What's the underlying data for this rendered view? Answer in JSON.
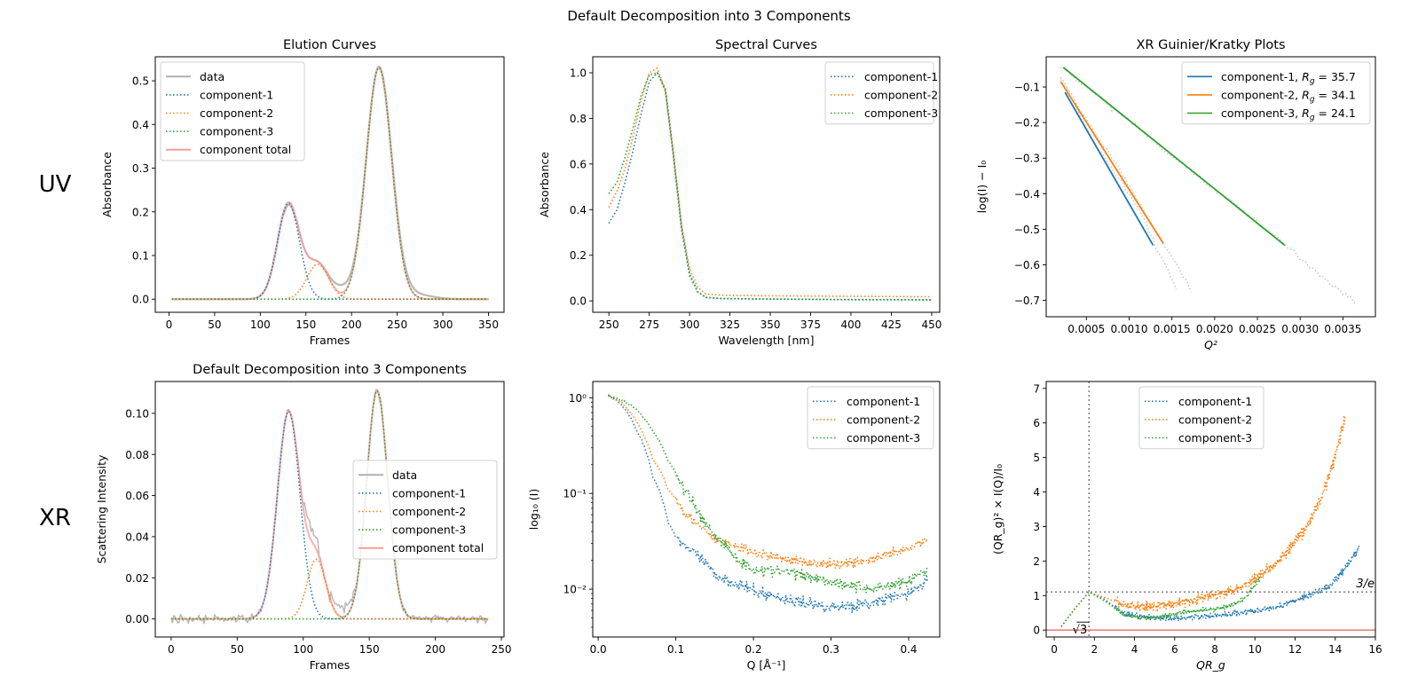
{
  "figure": {
    "suptitle": "Default Decomposition into 3 Components",
    "row_labels": [
      "UV",
      "XR"
    ],
    "colors": {
      "data": "#b0b0b0",
      "c1": "#1f77b4",
      "c2": "#ff7f0e",
      "c3": "#2ca02c",
      "total": "#ff9a9a",
      "ref": "#808080",
      "zero": "#f08080"
    }
  },
  "chart_data": [
    {
      "id": "uv-elution",
      "type": "line",
      "title": "Elution Curves",
      "xlabel": "Frames",
      "ylabel": "Absorbance",
      "xlim": [
        -15,
        367
      ],
      "ylim": [
        -0.03,
        0.555
      ],
      "xticks": [
        0,
        50,
        100,
        150,
        200,
        250,
        300,
        350
      ],
      "yticks": [
        0.0,
        0.1,
        0.2,
        0.3,
        0.4,
        0.5
      ],
      "ytick_labels": [
        "0.0",
        "0.1",
        "0.2",
        "0.3",
        "0.4",
        "0.5"
      ],
      "legend": {
        "position": "upper-left",
        "entries": [
          {
            "label": "data",
            "style": "solid",
            "color": "data"
          },
          {
            "label": "component-1",
            "style": "dotted",
            "color": "c1"
          },
          {
            "label": "component-2",
            "style": "dotted",
            "color": "c2"
          },
          {
            "label": "component-3",
            "style": "dotted",
            "color": "c3"
          },
          {
            "label": "component total",
            "style": "solid",
            "color": "total"
          }
        ]
      },
      "x_range": [
        3,
        350
      ],
      "components": [
        {
          "name": "component-1",
          "peaks": [
            {
              "center": 131,
              "height": 0.22,
              "sigma": 12
            }
          ]
        },
        {
          "name": "component-2",
          "peaks": [
            {
              "center": 163,
              "height": 0.08,
              "sigma": 12
            }
          ]
        },
        {
          "name": "component-3",
          "peaks": [
            {
              "center": 230,
              "height": 0.53,
              "sigma": 14
            }
          ]
        }
      ],
      "data_extra": [
        {
          "center": 190,
          "height": 0.018,
          "sigma": 10
        },
        {
          "center": 265,
          "height": 0.012,
          "sigma": 20
        }
      ]
    },
    {
      "id": "uv-spectral",
      "type": "line",
      "title": "Spectral Curves",
      "xlabel": "Wavelength [nm]",
      "ylabel": "Absorbance",
      "xlim": [
        240,
        455
      ],
      "ylim": [
        -0.05,
        1.07
      ],
      "xticks": [
        250,
        275,
        300,
        325,
        350,
        375,
        400,
        425,
        450
      ],
      "yticks": [
        0.0,
        0.2,
        0.4,
        0.6,
        0.8,
        1.0
      ],
      "ytick_labels": [
        "0.0",
        "0.2",
        "0.4",
        "0.6",
        "0.8",
        "1.0"
      ],
      "legend": {
        "position": "upper-right",
        "entries": [
          {
            "label": "component-1",
            "style": "dotted",
            "color": "c1"
          },
          {
            "label": "component-2",
            "style": "dotted",
            "color": "c2"
          },
          {
            "label": "component-3",
            "style": "dotted",
            "color": "c3"
          }
        ]
      },
      "series": [
        {
          "name": "component-1",
          "x": [
            250,
            255,
            260,
            265,
            270,
            275,
            280,
            285,
            290,
            295,
            300,
            305,
            310,
            320,
            350,
            400,
            450
          ],
          "y": [
            0.34,
            0.4,
            0.52,
            0.66,
            0.82,
            0.96,
            1.0,
            0.93,
            0.65,
            0.33,
            0.12,
            0.04,
            0.015,
            0.01,
            0.008,
            0.006,
            0.005
          ]
        },
        {
          "name": "component-2",
          "x": [
            250,
            255,
            260,
            265,
            270,
            275,
            280,
            285,
            290,
            295,
            300,
            305,
            310,
            320,
            350,
            400,
            450
          ],
          "y": [
            0.41,
            0.48,
            0.58,
            0.72,
            0.88,
            1.0,
            1.02,
            0.92,
            0.64,
            0.33,
            0.14,
            0.06,
            0.03,
            0.025,
            0.022,
            0.02,
            0.018
          ]
        },
        {
          "name": "component-3",
          "x": [
            250,
            255,
            260,
            265,
            270,
            275,
            280,
            285,
            290,
            295,
            300,
            305,
            310,
            320,
            350,
            400,
            450
          ],
          "y": [
            0.47,
            0.52,
            0.63,
            0.76,
            0.9,
            0.99,
            1.0,
            0.92,
            0.63,
            0.31,
            0.11,
            0.04,
            0.015,
            0.01,
            0.008,
            0.005,
            0.004
          ]
        }
      ]
    },
    {
      "id": "xr-guinier",
      "type": "line",
      "title": "XR Guinier/Kratky Plots",
      "xlabel": "Q²",
      "ylabel": "log(I) − I₀",
      "xlim": [
        3e-05,
        0.00388
      ],
      "ylim": [
        -0.746,
        -0.015
      ],
      "xticks": [
        0.0005,
        0.001,
        0.0015,
        0.002,
        0.0025,
        0.003,
        0.0035
      ],
      "xtick_labels": [
        "0.0005",
        "0.0010",
        "0.0015",
        "0.0020",
        "0.0025",
        "0.0030",
        "0.0035"
      ],
      "yticks": [
        -0.1,
        -0.2,
        -0.3,
        -0.4,
        -0.5,
        -0.6,
        -0.7
      ],
      "ytick_labels": [
        "−0.1",
        "−0.2",
        "−0.3",
        "−0.4",
        "−0.5",
        "−0.6",
        "−0.7"
      ],
      "legend": {
        "position": "upper-right",
        "entries": [
          {
            "label": "component-1, R_g = 35.7",
            "style": "solid",
            "color": "c1"
          },
          {
            "label": "component-2, R_g = 34.1",
            "style": "solid",
            "color": "c2"
          },
          {
            "label": "component-3, R_g = 24.1",
            "style": "solid",
            "color": "c3"
          }
        ]
      },
      "fits": [
        {
          "name": "component-1",
          "rg": 35.7,
          "x": [
            0.00025,
            0.00128
          ],
          "y": [
            -0.115,
            -0.545
          ]
        },
        {
          "name": "component-2",
          "rg": 34.1,
          "x": [
            0.0002,
            0.0014
          ],
          "y": [
            -0.085,
            -0.54
          ]
        },
        {
          "name": "component-3",
          "rg": 24.1,
          "x": [
            0.00023,
            0.00282
          ],
          "y": [
            -0.045,
            -0.545
          ]
        }
      ],
      "data_points": [
        {
          "x": [
            0.0002,
            0.0004,
            0.0006,
            0.0008,
            0.001,
            0.0012,
            0.0013,
            0.0014,
            0.0015,
            0.00157
          ],
          "y": [
            -0.07,
            -0.17,
            -0.26,
            -0.33,
            -0.4,
            -0.48,
            -0.55,
            -0.59,
            -0.64,
            -0.68
          ]
        },
        {
          "x": [
            0.0002,
            0.0004,
            0.0006,
            0.0008,
            0.001,
            0.0012,
            0.0014,
            0.0015,
            0.0016,
            0.00175
          ],
          "y": [
            -0.08,
            -0.15,
            -0.23,
            -0.3,
            -0.38,
            -0.46,
            -0.54,
            -0.58,
            -0.62,
            -0.68
          ]
        },
        {
          "x": [
            0.0002,
            0.0005,
            0.0008,
            0.0011,
            0.0014,
            0.0017,
            0.002,
            0.0023,
            0.0026,
            0.0029,
            0.0032,
            0.0034,
            0.00366
          ],
          "y": [
            -0.04,
            -0.1,
            -0.16,
            -0.21,
            -0.28,
            -0.33,
            -0.39,
            -0.44,
            -0.5,
            -0.56,
            -0.62,
            -0.66,
            -0.71
          ]
        }
      ]
    },
    {
      "id": "xr-elution",
      "type": "line",
      "title": "Default Decomposition into 3 Components",
      "xlabel": "Frames",
      "ylabel": "Scattering Intensity",
      "xlim": [
        -12,
        252
      ],
      "ylim": [
        -0.0088,
        0.1155
      ],
      "xticks": [
        0,
        50,
        100,
        150,
        200,
        250
      ],
      "yticks": [
        0.0,
        0.02,
        0.04,
        0.06,
        0.08,
        0.1
      ],
      "ytick_labels": [
        "0.00",
        "0.02",
        "0.04",
        "0.06",
        "0.08",
        "0.10"
      ],
      "legend": {
        "position": "center-right",
        "entries": [
          {
            "label": "data",
            "style": "solid",
            "color": "data"
          },
          {
            "label": "component-1",
            "style": "dotted",
            "color": "c1"
          },
          {
            "label": "component-2",
            "style": "dotted",
            "color": "c2"
          },
          {
            "label": "component-3",
            "style": "dotted",
            "color": "c3"
          },
          {
            "label": "component total",
            "style": "solid",
            "color": "total"
          }
        ]
      },
      "x_range": [
        0,
        240
      ],
      "components": [
        {
          "name": "component-1",
          "peaks": [
            {
              "center": 89,
              "height": 0.101,
              "sigma": 8.5
            }
          ]
        },
        {
          "name": "component-2",
          "peaks": [
            {
              "center": 110,
              "height": 0.029,
              "sigma": 7
            }
          ]
        },
        {
          "name": "component-3",
          "peaks": [
            {
              "center": 156,
              "height": 0.111,
              "sigma": 8
            }
          ]
        }
      ],
      "noise": 0.0018
    },
    {
      "id": "xr-scattering",
      "type": "scatter",
      "title": "",
      "xlabel": "Q [Å⁻¹]",
      "ylabel": "log₁₀ (I)",
      "xscale": "linear",
      "yscale": "log",
      "xlim": [
        -0.007,
        0.44
      ],
      "ylim_log10": [
        -2.5,
        0.17
      ],
      "xticks": [
        0.0,
        0.1,
        0.2,
        0.3,
        0.4
      ],
      "xtick_labels": [
        "0.0",
        "0.1",
        "0.2",
        "0.3",
        "0.4"
      ],
      "yticks_log10": [
        0,
        -1,
        -2
      ],
      "ytick_labels": [
        "10⁰",
        "10⁻¹",
        "10⁻²"
      ],
      "legend": {
        "position": "upper-right",
        "entries": [
          {
            "label": "component-1",
            "style": "dotted",
            "color": "c1"
          },
          {
            "label": "component-2",
            "style": "dotted",
            "color": "c2"
          },
          {
            "label": "component-3",
            "style": "dotted",
            "color": "c3"
          }
        ]
      },
      "series": [
        {
          "name": "component-1",
          "x": [
            0.013,
            0.03,
            0.05,
            0.07,
            0.09,
            0.1,
            0.12,
            0.15,
            0.2,
            0.25,
            0.3,
            0.35,
            0.4,
            0.425
          ],
          "y": [
            1.05,
            0.85,
            0.45,
            0.15,
            0.05,
            0.035,
            0.025,
            0.014,
            0.0095,
            0.0075,
            0.0065,
            0.007,
            0.009,
            0.012
          ]
        },
        {
          "name": "component-2",
          "x": [
            0.013,
            0.03,
            0.05,
            0.07,
            0.09,
            0.11,
            0.13,
            0.15,
            0.2,
            0.25,
            0.3,
            0.35,
            0.4,
            0.425
          ],
          "y": [
            1.08,
            0.9,
            0.55,
            0.23,
            0.11,
            0.065,
            0.045,
            0.033,
            0.024,
            0.02,
            0.018,
            0.02,
            0.026,
            0.034
          ]
        },
        {
          "name": "component-3",
          "x": [
            0.013,
            0.03,
            0.05,
            0.07,
            0.09,
            0.11,
            0.13,
            0.15,
            0.18,
            0.2,
            0.25,
            0.3,
            0.35,
            0.4,
            0.425
          ],
          "y": [
            1.05,
            0.95,
            0.75,
            0.45,
            0.22,
            0.11,
            0.06,
            0.036,
            0.02,
            0.016,
            0.015,
            0.012,
            0.01,
            0.012,
            0.016
          ]
        }
      ],
      "noise_log10": [
        0.06,
        0.05,
        0.06
      ]
    },
    {
      "id": "xr-kratky",
      "type": "scatter",
      "title": "",
      "xlabel": "QR_g",
      "ylabel": "(QR_g)² × I(Q)/I₀",
      "xlim": [
        -0.4,
        16
      ],
      "ylim": [
        -0.2,
        7.2
      ],
      "xticks": [
        0,
        2,
        4,
        6,
        8,
        10,
        12,
        14,
        16
      ],
      "yticks": [
        0,
        1,
        2,
        3,
        4,
        5,
        6,
        7
      ],
      "legend": {
        "position": "upper-center",
        "entries": [
          {
            "label": "component-1",
            "style": "dotted",
            "color": "c1"
          },
          {
            "label": "component-2",
            "style": "dotted",
            "color": "c2"
          },
          {
            "label": "component-3",
            "style": "dotted",
            "color": "c3"
          }
        ]
      },
      "annotations": [
        {
          "text": "√3",
          "x": 1.732,
          "y": 0,
          "type": "vline"
        },
        {
          "text": "3/e",
          "x": 16,
          "y": 1.104,
          "type": "hline"
        }
      ],
      "series": [
        {
          "name": "component-1",
          "x": [
            0.35,
            1.0,
            1.73,
            2.5,
            3.5,
            4.5,
            5.5,
            6.5,
            8,
            9,
            10,
            11,
            12,
            13,
            13.7,
            14.5,
            15.2
          ],
          "y": [
            0.1,
            0.6,
            1.1,
            0.9,
            0.45,
            0.38,
            0.33,
            0.36,
            0.42,
            0.48,
            0.55,
            0.65,
            0.85,
            1.1,
            1.25,
            1.8,
            2.4
          ]
        },
        {
          "name": "component-2",
          "x": [
            0.35,
            1.0,
            1.73,
            2.5,
            3.5,
            4.5,
            5.5,
            6.5,
            7.5,
            8.5,
            9.5,
            10.5,
            11.5,
            12.5,
            13.3,
            14,
            14.5
          ],
          "y": [
            0.1,
            0.6,
            1.1,
            0.95,
            0.72,
            0.68,
            0.72,
            0.82,
            0.95,
            1.1,
            1.3,
            1.7,
            2.2,
            2.9,
            3.8,
            5.0,
            6.2
          ]
        },
        {
          "name": "component-3",
          "x": [
            0.35,
            1.0,
            1.73,
            2.5,
            3.5,
            4.5,
            5.5,
            6.5,
            7.5,
            8.5,
            9.0,
            9.5,
            10.0,
            10.3
          ],
          "y": [
            0.1,
            0.6,
            1.1,
            0.85,
            0.45,
            0.36,
            0.4,
            0.52,
            0.58,
            0.66,
            0.75,
            0.95,
            1.3,
            1.55
          ]
        }
      ],
      "noise": [
        0.08,
        0.12,
        0.06
      ]
    }
  ]
}
